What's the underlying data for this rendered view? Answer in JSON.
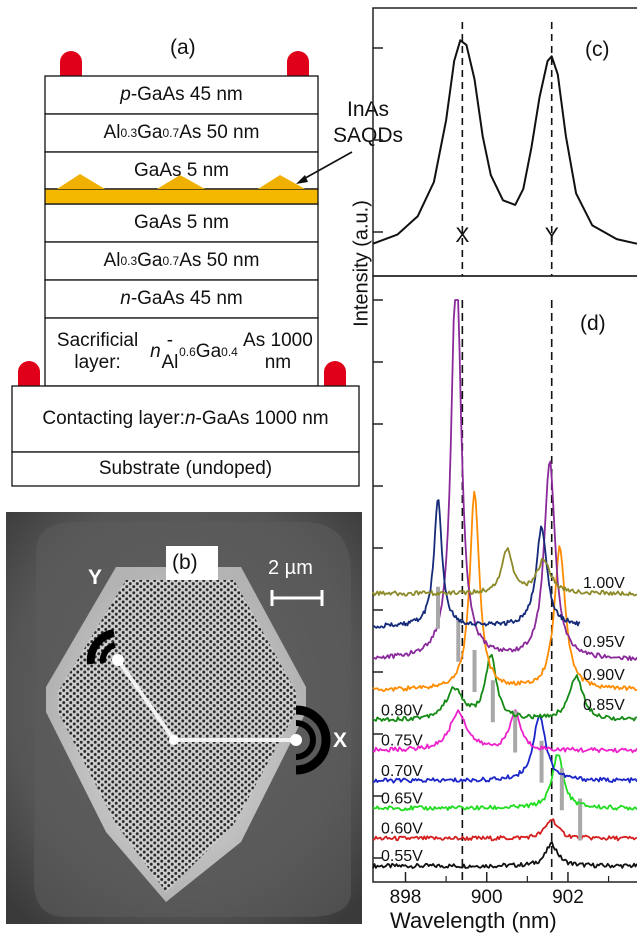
{
  "panel_a": {
    "label": "(a)",
    "layers": [
      {
        "html": "<i>p</i>-GaAs 45 nm"
      },
      {
        "html": "Al<sub>0.3</sub>Ga<sub>0.7</sub>As 50 nm"
      },
      {
        "html": "GaAs 5 nm"
      },
      {
        "html": "GaAs 5 nm"
      },
      {
        "html": "Al<sub>0.3</sub>Ga<sub>0.7</sub>As 50 nm"
      },
      {
        "html": "<i>n</i>-GaAs 45 nm"
      },
      {
        "html": "Sacrificial layer:<br><i>n</i>-Al<sub>0.6</sub>Ga<sub>0.4</sub>As 1000 nm"
      },
      {
        "html": "Contacting layer:<br><i>n</i>-GaAs 1000 nm"
      },
      {
        "html": "Substrate (undoped)"
      }
    ],
    "annotation_line1": "InAs",
    "annotation_line2": "SAQDs",
    "colors": {
      "contact": "#e0001a",
      "qd": "#f5b800"
    }
  },
  "panel_b": {
    "label": "(b)",
    "scale_bar": "2 µm",
    "port_y": "Y",
    "port_x": "X"
  },
  "chart_data": [
    {
      "type": "line",
      "panel": "(c)",
      "ylabel": "Intensity (a.u.)",
      "peak_labels": [
        {
          "text": "X",
          "x": 899.4
        },
        {
          "text": "Y",
          "x": 901.6
        }
      ],
      "series": [
        {
          "values": [
            [
              897.2,
              0.08
            ],
            [
              897.8,
              0.12
            ],
            [
              898.3,
              0.2
            ],
            [
              898.7,
              0.35
            ],
            [
              899.0,
              0.62
            ],
            [
              899.2,
              0.88
            ],
            [
              899.35,
              0.97
            ],
            [
              899.5,
              0.95
            ],
            [
              899.7,
              0.8
            ],
            [
              899.9,
              0.55
            ],
            [
              900.1,
              0.38
            ],
            [
              900.4,
              0.27
            ],
            [
              900.7,
              0.25
            ],
            [
              900.9,
              0.32
            ],
            [
              901.1,
              0.5
            ],
            [
              901.3,
              0.72
            ],
            [
              901.5,
              0.88
            ],
            [
              901.6,
              0.9
            ],
            [
              901.75,
              0.82
            ],
            [
              901.95,
              0.55
            ],
            [
              902.2,
              0.3
            ],
            [
              902.6,
              0.16
            ],
            [
              903.2,
              0.1
            ],
            [
              903.7,
              0.08
            ]
          ]
        }
      ],
      "xlim": [
        897.2,
        903.7
      ],
      "ylim": [
        0,
        1.05
      ]
    },
    {
      "type": "line",
      "panel": "(d)",
      "xlabel": "Wavelength (nm)",
      "ylabel": "Intensity (a.u.)",
      "xticks": [
        898,
        900,
        902
      ],
      "xlim": [
        897.2,
        903.7
      ],
      "dashed_lines_x": [
        899.4,
        901.6
      ],
      "series": [
        {
          "name": "0.55V",
          "color": "#111111",
          "offset": 0.0,
          "peaks": [
            [
              901.6,
              0.4,
              0.18
            ]
          ],
          "marker": null,
          "start": 897.2,
          "end": 903.7
        },
        {
          "name": "0.60V",
          "color": "#d42020",
          "offset": 0.5,
          "peaks": [
            [
              901.6,
              0.35,
              0.18
            ]
          ],
          "marker": 902.3,
          "start": 897.2,
          "end": 903.7
        },
        {
          "name": "0.65V",
          "color": "#22dd22",
          "offset": 1.05,
          "peaks": [
            [
              901.75,
              1.0,
              0.16
            ]
          ],
          "marker": 901.85,
          "start": 897.2,
          "end": 903.7
        },
        {
          "name": "0.70V",
          "color": "#1b25c8",
          "offset": 1.55,
          "peaks": [
            [
              901.3,
              1.2,
              0.18
            ]
          ],
          "marker": 901.35,
          "start": 897.2,
          "end": 903.7
        },
        {
          "name": "0.75V",
          "color": "#ee22cc",
          "offset": 2.1,
          "peaks": [
            [
              899.3,
              0.7,
              0.25
            ],
            [
              900.7,
              0.7,
              0.16
            ]
          ],
          "marker": 900.7,
          "start": 897.2,
          "end": 903.7
        },
        {
          "name": "0.80V",
          "color": "#158a15",
          "offset": 2.65,
          "peaks": [
            [
              899.2,
              0.55,
              0.25
            ],
            [
              900.1,
              1.15,
              0.16
            ],
            [
              902.2,
              0.8,
              0.2
            ]
          ],
          "marker": 900.15,
          "start": 897.2,
          "end": 903.7
        },
        {
          "name": "0.85V",
          "color": "#ff8c00",
          "offset": 3.2,
          "peaks": [
            [
              899.7,
              3.6,
              0.14
            ],
            [
              901.8,
              2.6,
              0.16
            ]
          ],
          "marker": 899.7,
          "start": 897.2,
          "end": 903.7
        },
        {
          "name": "0.90V",
          "color": "#8a2a9a",
          "offset": 3.75,
          "peaks": [
            [
              899.25,
              7.5,
              0.14
            ],
            [
              901.55,
              3.6,
              0.16
            ]
          ],
          "marker": 899.3,
          "start": 897.2,
          "end": 903.7
        },
        {
          "name": "0.95V",
          "color": "#162a7a",
          "offset": 4.35,
          "peaks": [
            [
              898.8,
              2.3,
              0.12
            ],
            [
              901.35,
              1.8,
              0.16
            ]
          ],
          "marker": 898.8,
          "start": 897.2,
          "end": 902.3
        },
        {
          "name": "1.00V",
          "color": "#8d8a2a",
          "offset": 4.95,
          "peaks": [
            [
              900.5,
              0.8,
              0.15
            ],
            [
              901.4,
              0.6,
              0.2
            ]
          ],
          "marker": null,
          "start": 897.2,
          "end": 903.7
        }
      ]
    }
  ]
}
